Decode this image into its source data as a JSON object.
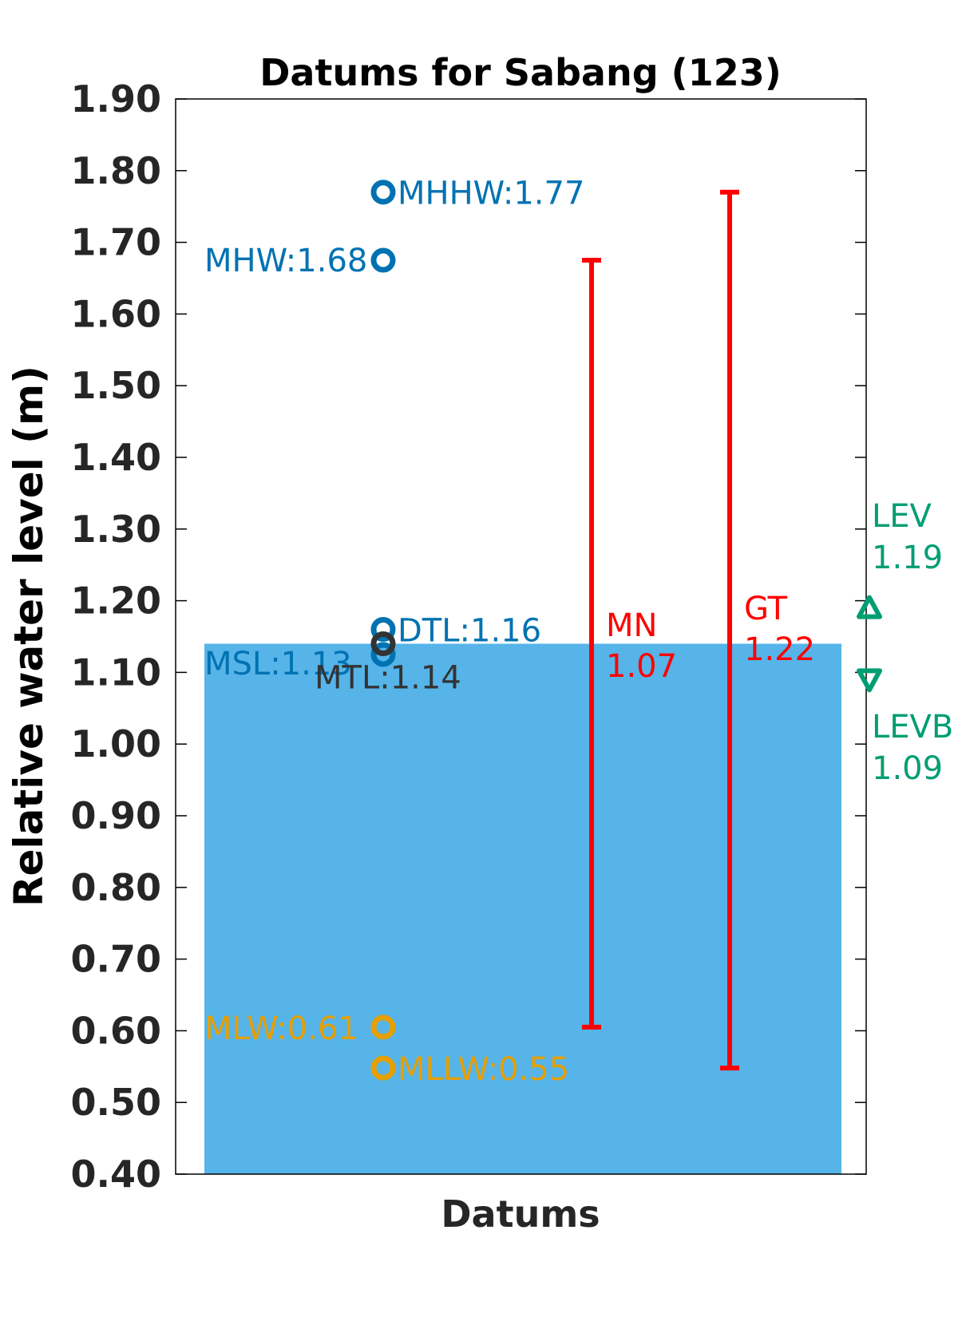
{
  "chart_data": {
    "type": "bar",
    "title": "Datums for Sabang (123)",
    "xlabel": "Datums",
    "ylabel": "Relative water level (m)",
    "ylim": [
      0.4,
      1.9
    ],
    "yticks": [
      0.4,
      0.5,
      0.6,
      0.7,
      0.8,
      0.9,
      1.0,
      1.1,
      1.2,
      1.3,
      1.4,
      1.5,
      1.6,
      1.7,
      1.8,
      1.9
    ],
    "ytick_labels": [
      "0.40",
      "0.50",
      "0.60",
      "0.70",
      "0.80",
      "0.90",
      "1.00",
      "1.10",
      "1.20",
      "1.30",
      "1.40",
      "1.50",
      "1.60",
      "1.70",
      "1.80",
      "1.90"
    ],
    "grid": false,
    "bar": {
      "value": 1.14,
      "color": "#56B4E9"
    },
    "datums": [
      {
        "label": "MHHW:1.77",
        "value": 1.77,
        "color": "#0072B2",
        "marker": "circle"
      },
      {
        "label": "MHW:1.68",
        "value": 1.675,
        "color": "#0072B2",
        "marker": "circle"
      },
      {
        "label": "DTL:1.16",
        "value": 1.16,
        "color": "#0072B2",
        "marker": "circle"
      },
      {
        "label": "MSL:1.13",
        "value": 1.125,
        "color": "#0072B2",
        "marker": "circle"
      },
      {
        "label": "MTL:1.14",
        "value": 1.14,
        "color": "#333333",
        "marker": "circle"
      },
      {
        "label": "MLW:0.61",
        "value": 0.605,
        "color": "#E69F00",
        "marker": "circle"
      },
      {
        "label": "MLLW:0.55",
        "value": 0.548,
        "color": "#E69F00",
        "marker": "circle"
      }
    ],
    "ranges": [
      {
        "name": "MN",
        "value_label": "1.07",
        "low": 0.605,
        "high": 1.675,
        "color": "#FF0000"
      },
      {
        "name": "GT",
        "value_label": "1.22",
        "low": 0.548,
        "high": 1.77,
        "color": "#FF0000"
      }
    ],
    "extremes": [
      {
        "name": "LEV",
        "value_label": "1.19",
        "value": 1.19,
        "marker": "triangle-up",
        "color": "#009E73"
      },
      {
        "name": "LEVB",
        "value_label": "1.09",
        "value": 1.09,
        "marker": "triangle-down",
        "color": "#009E73"
      }
    ]
  }
}
